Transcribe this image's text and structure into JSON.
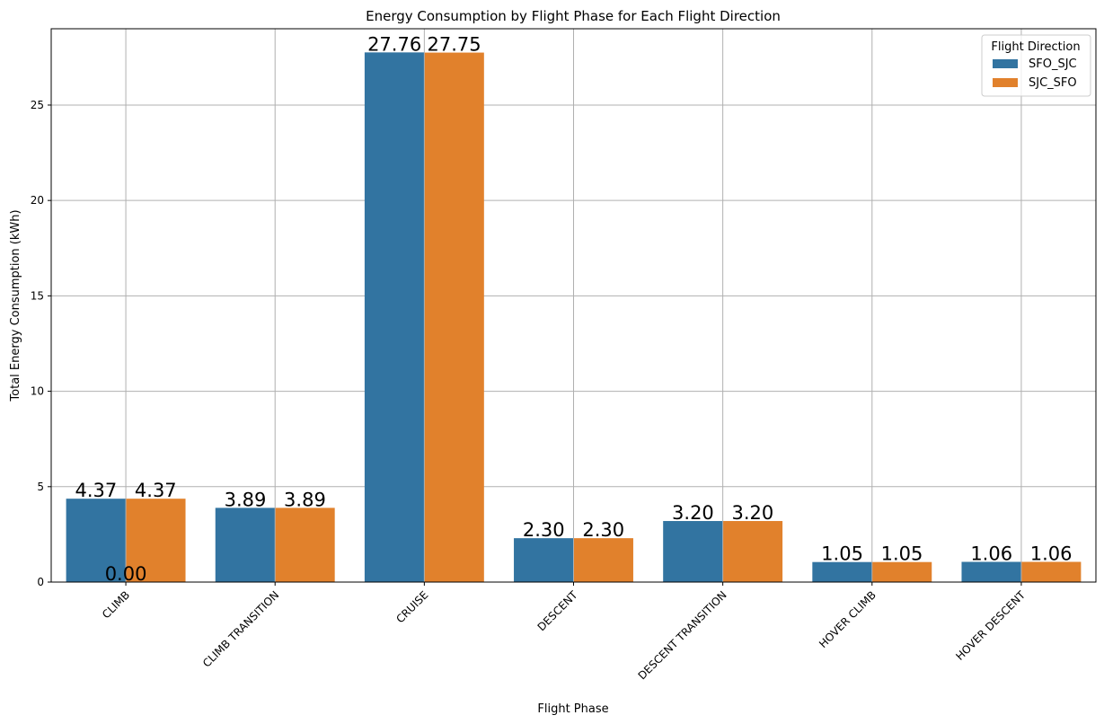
{
  "chart_data": {
    "type": "bar",
    "title": "Energy Consumption by Flight Phase for Each Flight Direction",
    "xlabel": "Flight Phase",
    "ylabel": "Total Energy Consumption (kWh)",
    "ylim": [
      0,
      29
    ],
    "yticks": [
      0,
      5,
      10,
      15,
      20,
      25
    ],
    "categories": [
      "CLIMB",
      "CLIMB TRANSITION",
      "CRUISE",
      "DESCENT",
      "DESCENT TRANSITION",
      "HOVER CLIMB",
      "HOVER DESCENT"
    ],
    "series": [
      {
        "name": "SFO_SJC",
        "color": "#3274a1",
        "values": [
          4.37,
          3.89,
          27.76,
          2.3,
          3.2,
          1.05,
          1.06
        ]
      },
      {
        "name": "SJC_SFO",
        "color": "#e1812c",
        "values": [
          4.37,
          3.89,
          27.75,
          2.3,
          3.2,
          1.05,
          1.06
        ]
      }
    ],
    "data_labels": [
      [
        "4.37",
        "3.89",
        "27.76",
        "2.30",
        "3.20",
        "1.05",
        "1.06"
      ],
      [
        "4.37",
        "3.89",
        "27.75",
        "2.30",
        "3.20",
        "1.05",
        "1.06"
      ]
    ],
    "extra_labels": [
      {
        "text": "0.00",
        "category": "CLIMB",
        "value": 0
      }
    ],
    "grid": true,
    "legend": {
      "title": "Flight Direction",
      "position": "top-right"
    }
  }
}
